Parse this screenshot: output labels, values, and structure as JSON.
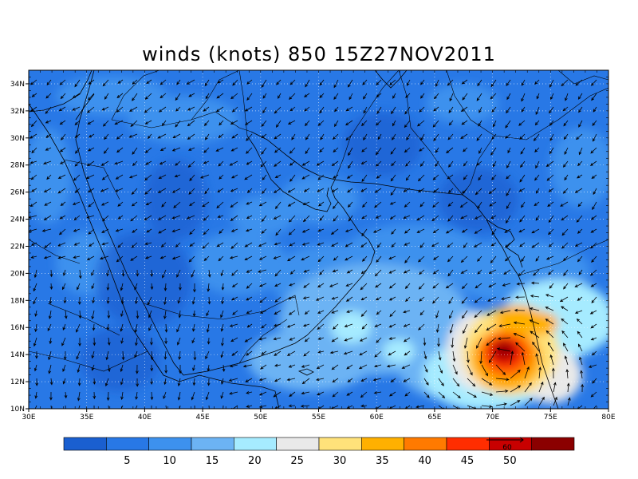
{
  "title": "winds (knots) 850  15Z27NOV2011",
  "map": {
    "lon_range": [
      30,
      80
    ],
    "lat_range": [
      10,
      35
    ],
    "lon_ticks": [
      "30E",
      "35E",
      "40E",
      "45E",
      "50E",
      "55E",
      "60E",
      "65E",
      "70E",
      "75E",
      "80E"
    ],
    "lat_ticks": [
      "10N",
      "12N",
      "14N",
      "16N",
      "18N",
      "20N",
      "22N",
      "24N",
      "26N",
      "28N",
      "30N",
      "32N",
      "34N"
    ],
    "grid": true,
    "features": [
      "coastlines",
      "country-borders",
      "wind-vectors"
    ],
    "cyclone_center": {
      "lon": 71,
      "lat": 13.5
    }
  },
  "colorbar": {
    "colors": [
      "#1a5fd0",
      "#2878e6",
      "#3d91ee",
      "#6cb3f4",
      "#a6ebff",
      "#e9e9e9",
      "#ffe27a",
      "#ffb000",
      "#ff7a00",
      "#ff2d00",
      "#c80000",
      "#8b0000"
    ],
    "labels": [
      "5",
      "10",
      "15",
      "20",
      "25",
      "30",
      "35",
      "40",
      "45",
      "50"
    ],
    "arrow_label": "60"
  }
}
